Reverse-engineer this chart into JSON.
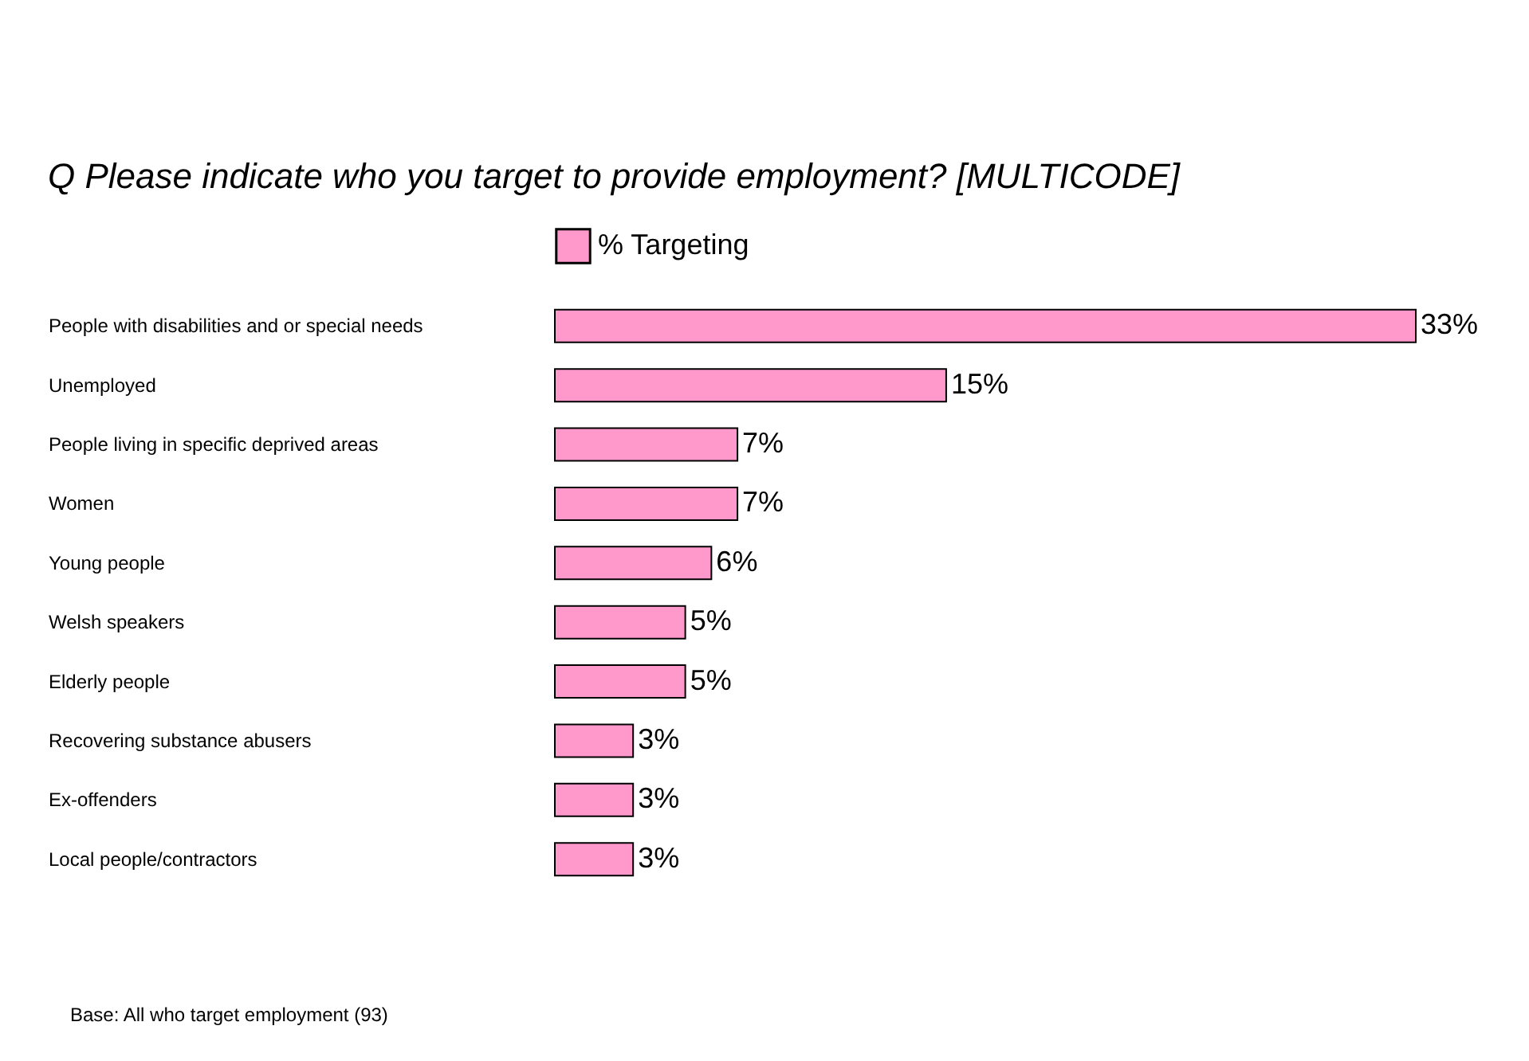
{
  "chart_data": {
    "type": "bar",
    "orientation": "horizontal",
    "title": "Q   Please indicate who you target to provide employment? [MULTICODE]",
    "categories": [
      "People with disabilities and or special needs",
      "Unemployed",
      "People living in specific deprived areas",
      "Women",
      "Young people",
      "Welsh speakers",
      "Elderly people",
      "Recovering substance abusers",
      "Ex-offenders",
      "Local people/contractors"
    ],
    "series": [
      {
        "name": "% Targeting",
        "color": "#ff99cc",
        "values": [
          33,
          15,
          7,
          7,
          6,
          5,
          5,
          3,
          3,
          3
        ],
        "value_labels": [
          "33%",
          "15%",
          "7%",
          "7%",
          "6%",
          "5%",
          "5%",
          "3%",
          "3%",
          "3%"
        ]
      }
    ],
    "legend": "top",
    "grid": false,
    "tick_labels": "y",
    "annotations": [
      "Base: All who target employment (93)"
    ]
  }
}
